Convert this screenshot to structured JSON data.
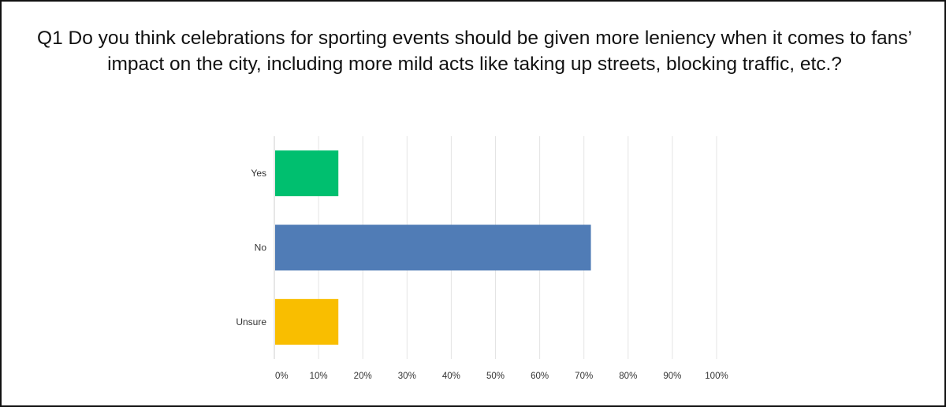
{
  "chart_data": {
    "type": "bar",
    "orientation": "horizontal",
    "title": "Q1 Do you think celebrations for sporting events should be given more leniency when it comes to fans’ impact on the city, including more mild acts like taking up streets, blocking traffic, etc.?",
    "categories": [
      "Yes",
      "No",
      "Unsure"
    ],
    "values": [
      14.3,
      71.4,
      14.3
    ],
    "colors": [
      "#00BF6F",
      "#507CB6",
      "#F9BE00"
    ],
    "xlim": [
      0,
      100
    ],
    "x_ticks": [
      "0%",
      "10%",
      "20%",
      "30%",
      "40%",
      "50%",
      "60%",
      "70%",
      "80%",
      "90%",
      "100%"
    ],
    "grid": true,
    "legend": "none"
  }
}
